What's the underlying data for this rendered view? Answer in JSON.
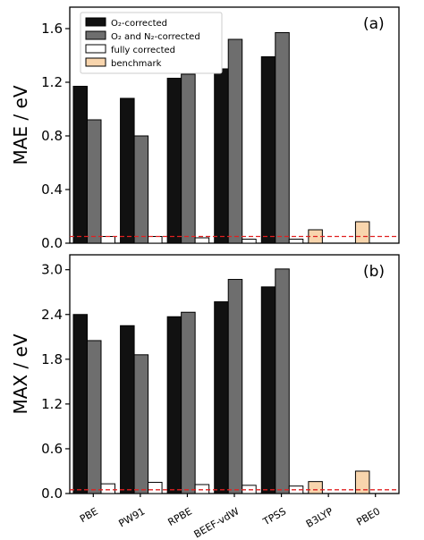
{
  "chart_data": [
    {
      "type": "bar",
      "panel_label": "(a)",
      "ylabel": "MAE / eV",
      "ylim": [
        0,
        1.76
      ],
      "yticks": [
        "0.0",
        "0.4",
        "0.8",
        "1.2",
        "1.6"
      ],
      "yticks_values": [
        0.0,
        0.4,
        0.8,
        1.2,
        1.6
      ],
      "categories": [
        "PBE",
        "PW91",
        "RPBE",
        "BEEF-vdW",
        "TPSS",
        "B3LYP",
        "PBE0"
      ],
      "series": [
        {
          "name": "O₂-corrected",
          "color": "#111111",
          "values": [
            1.17,
            1.08,
            1.23,
            1.3,
            1.39,
            null,
            null
          ]
        },
        {
          "name": "O₂ and N₂-corrected",
          "color": "#6e6e6e",
          "values": [
            0.92,
            0.8,
            1.26,
            1.52,
            1.57,
            null,
            null
          ]
        },
        {
          "name": "fully corrected",
          "color": "#ffffff",
          "values": [
            0.05,
            0.05,
            0.04,
            0.03,
            0.03,
            null,
            null
          ]
        },
        {
          "name": "benchmark",
          "color": "#f8d5ad",
          "values": [
            null,
            null,
            null,
            null,
            null,
            0.1,
            0.16
          ]
        }
      ],
      "reference_line": {
        "value": 0.05,
        "color": "#e02020",
        "style": "dashed"
      },
      "legend_position": "top-left"
    },
    {
      "type": "bar",
      "panel_label": "(b)",
      "ylabel": "MAX / eV",
      "ylim": [
        0,
        3.2
      ],
      "yticks": [
        "0.0",
        "0.6",
        "1.2",
        "1.8",
        "2.4",
        "3.0"
      ],
      "yticks_values": [
        0.0,
        0.6,
        1.2,
        1.8,
        2.4,
        3.0
      ],
      "categories": [
        "PBE",
        "PW91",
        "RPBE",
        "BEEF-vdW",
        "TPSS",
        "B3LYP",
        "PBE0"
      ],
      "series": [
        {
          "name": "O₂-corrected",
          "color": "#111111",
          "values": [
            2.4,
            2.25,
            2.37,
            2.57,
            2.77,
            null,
            null
          ]
        },
        {
          "name": "O₂ and N₂-corrected",
          "color": "#6e6e6e",
          "values": [
            2.05,
            1.86,
            2.43,
            2.87,
            3.01,
            null,
            null
          ]
        },
        {
          "name": "fully corrected",
          "color": "#ffffff",
          "values": [
            0.13,
            0.15,
            0.12,
            0.11,
            0.1,
            null,
            null
          ]
        },
        {
          "name": "benchmark",
          "color": "#f8d5ad",
          "values": [
            null,
            null,
            null,
            null,
            null,
            0.16,
            0.3
          ]
        }
      ],
      "reference_line": {
        "value": 0.05,
        "color": "#e02020",
        "style": "dashed"
      }
    }
  ]
}
